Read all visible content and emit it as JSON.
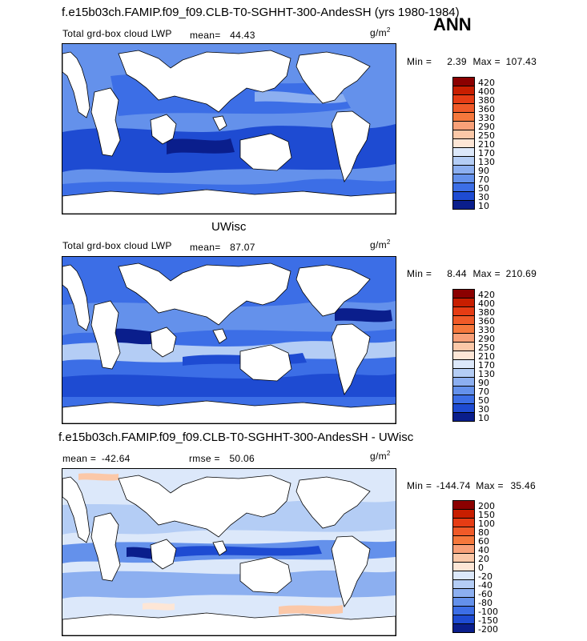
{
  "season": "ANN",
  "panels": [
    {
      "title": "f.e15b03ch.FAMIP.f09_f09.CLB-T0-SGHHT-300-AndesSH (yrs 1980-1984)",
      "variable": "Total grd-box cloud LWP",
      "mean_label": "mean=",
      "mean": "44.43",
      "units": "g/m",
      "units_exp": "2",
      "min_label": "Min =",
      "min": "2.39",
      "max_label": "Max =",
      "max": "107.43",
      "colorbar_levels": [
        "420",
        "400",
        "380",
        "360",
        "330",
        "290",
        "250",
        "210",
        "170",
        "130",
        "90",
        "70",
        "50",
        "30",
        "10"
      ],
      "colorbar_colors": [
        "#8b0000",
        "#c81e00",
        "#e63c14",
        "#f05a28",
        "#f5783c",
        "#f8a078",
        "#fbc8a8",
        "#fde6d6",
        "#dce8fa",
        "#b4cdf5",
        "#8caff0",
        "#6491eb",
        "#3c6ee6",
        "#1e4bd2",
        "#0a1e8c"
      ]
    },
    {
      "title": "UWisc",
      "variable": "Total grd-box cloud LWP",
      "mean_label": "mean=",
      "mean": "87.07",
      "units": "g/m",
      "units_exp": "2",
      "min_label": "Min =",
      "min": "8.44",
      "max_label": "Max =",
      "max": "210.69",
      "colorbar_levels": [
        "420",
        "400",
        "380",
        "360",
        "330",
        "290",
        "250",
        "210",
        "170",
        "130",
        "90",
        "70",
        "50",
        "30",
        "10"
      ],
      "colorbar_colors": [
        "#8b0000",
        "#c81e00",
        "#e63c14",
        "#f05a28",
        "#f5783c",
        "#f8a078",
        "#fbc8a8",
        "#fde6d6",
        "#dce8fa",
        "#b4cdf5",
        "#8caff0",
        "#6491eb",
        "#3c6ee6",
        "#1e4bd2",
        "#0a1e8c"
      ]
    },
    {
      "title": "f.e15b03ch.FAMIP.f09_f09.CLB-T0-SGHHT-300-AndesSH - UWisc",
      "mean_label": "mean =",
      "mean": "-42.64",
      "rmse_label": "rmse =",
      "rmse": "50.06",
      "units": "g/m",
      "units_exp": "2",
      "min_label": "Min =",
      "min": "-144.74",
      "max_label": "Max =",
      "max": "35.46",
      "colorbar_levels": [
        "200",
        "150",
        "100",
        "80",
        "60",
        "40",
        "20",
        "0",
        "-20",
        "-40",
        "-60",
        "-80",
        "-100",
        "-150",
        "-200"
      ],
      "colorbar_colors": [
        "#8b0000",
        "#c81e00",
        "#e63c14",
        "#f05a28",
        "#f5783c",
        "#f8a078",
        "#fbc8a8",
        "#fde6d6",
        "#dce8fa",
        "#b4cdf5",
        "#8caff0",
        "#6491eb",
        "#3c6ee6",
        "#1e4bd2",
        "#0a1e8c"
      ]
    }
  ],
  "chart_data": [
    {
      "type": "heatmap",
      "title": "f.e15b03ch.FAMIP.f09_f09.CLB-T0-SGHHT-300-AndesSH (yrs 1980-1984)",
      "field": "Total grd-box cloud LWP",
      "units": "g/m2",
      "mean": 44.43,
      "min": 2.39,
      "max": 107.43,
      "levels": [
        10,
        30,
        50,
        70,
        90,
        130,
        170,
        210,
        250,
        290,
        330,
        360,
        380,
        400,
        420
      ]
    },
    {
      "type": "heatmap",
      "title": "UWisc",
      "field": "Total grd-box cloud LWP",
      "units": "g/m2",
      "mean": 87.07,
      "min": 8.44,
      "max": 210.69,
      "levels": [
        10,
        30,
        50,
        70,
        90,
        130,
        170,
        210,
        250,
        290,
        330,
        360,
        380,
        400,
        420
      ]
    },
    {
      "type": "heatmap",
      "title": "f.e15b03ch.FAMIP.f09_f09.CLB-T0-SGHHT-300-AndesSH - UWisc",
      "units": "g/m2",
      "mean": -42.64,
      "rmse": 50.06,
      "min": -144.74,
      "max": 35.46,
      "levels": [
        -200,
        -150,
        -100,
        -80,
        -60,
        -40,
        -20,
        0,
        20,
        40,
        60,
        80,
        100,
        150,
        200
      ]
    }
  ]
}
